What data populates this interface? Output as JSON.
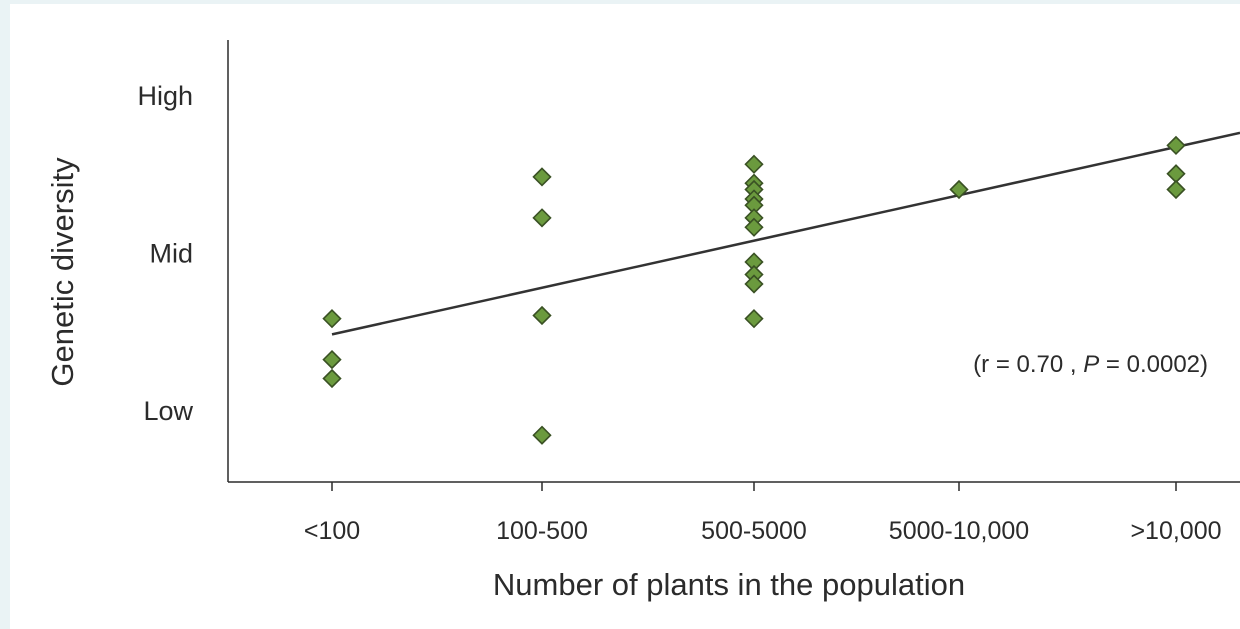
{
  "chart_data": {
    "type": "scatter",
    "xlabel": "Number of plants in the population",
    "ylabel": "Genetic diversity",
    "categories": [
      "<100",
      "100-500",
      "500-5000",
      "5000-10,000",
      ">10,000"
    ],
    "y_levels": [
      {
        "label": "High",
        "value": 1.0
      },
      {
        "label": "Mid",
        "value": 0.5
      },
      {
        "label": "Low",
        "value": 0.0
      }
    ],
    "ylim": [
      -0.1,
      1.18
    ],
    "points": [
      {
        "x": "<100",
        "y": 0.29
      },
      {
        "x": "<100",
        "y": 0.16
      },
      {
        "x": "<100",
        "y": 0.1
      },
      {
        "x": "100-500",
        "y": 0.74
      },
      {
        "x": "100-500",
        "y": 0.61
      },
      {
        "x": "100-500",
        "y": 0.3
      },
      {
        "x": "100-500",
        "y": -0.08
      },
      {
        "x": "500-5000",
        "y": 0.78
      },
      {
        "x": "500-5000",
        "y": 0.72
      },
      {
        "x": "500-5000",
        "y": 0.7
      },
      {
        "x": "500-5000",
        "y": 0.67
      },
      {
        "x": "500-5000",
        "y": 0.65
      },
      {
        "x": "500-5000",
        "y": 0.61
      },
      {
        "x": "500-5000",
        "y": 0.58
      },
      {
        "x": "500-5000",
        "y": 0.47
      },
      {
        "x": "500-5000",
        "y": 0.43
      },
      {
        "x": "500-5000",
        "y": 0.4
      },
      {
        "x": "500-5000",
        "y": 0.29
      },
      {
        "x": "5000-10,000",
        "y": 0.7
      },
      {
        "x": ">10,000",
        "y": 0.84
      },
      {
        "x": ">10,000",
        "y": 0.75
      },
      {
        "x": ">10,000",
        "y": 0.7
      }
    ],
    "trendline": {
      "start": {
        "x": "<100",
        "y": 0.24
      },
      "end_y_at_right_edge": 0.88
    },
    "annotation": {
      "r_part": "(r = 0.70 , ",
      "p_symbol": "P",
      "p_part": " = 0.0002)"
    },
    "marker": {
      "shape": "diamond",
      "fill": "#6b9a3e",
      "stroke": "#3a5124"
    },
    "colors": {
      "axis": "#2b2b2b",
      "trendline": "#333333",
      "text": "#2b2b2b"
    },
    "grid": false,
    "legend": "none"
  }
}
